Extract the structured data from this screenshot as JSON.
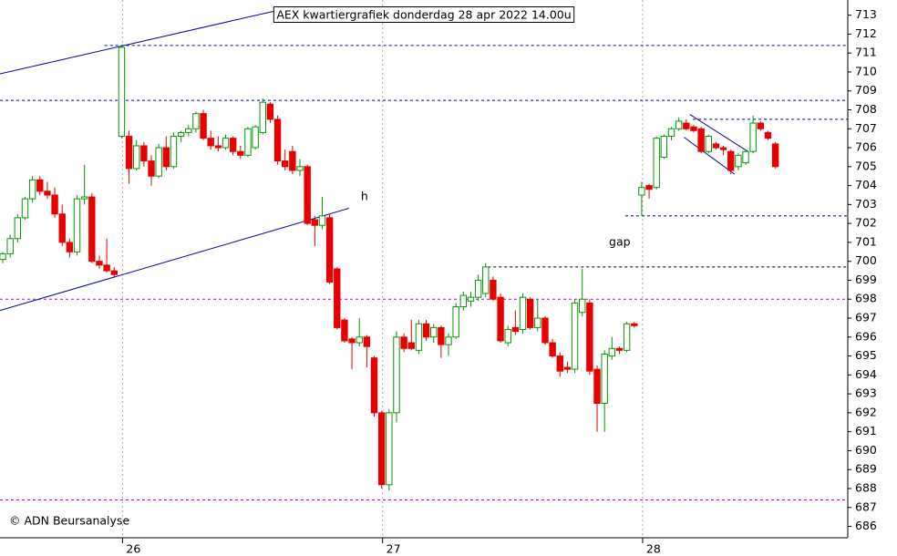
{
  "chart_data": {
    "type": "candlestick",
    "title": "AEX kwartiergrafiek donderdag 28 apr 2022  14.00u",
    "credit": "© ADN Beursanalyse",
    "categories": [
      null,
      null,
      null,
      null,
      null,
      null,
      null,
      null,
      null,
      null,
      null,
      null,
      null,
      null,
      null,
      null,
      "26",
      null,
      null,
      null,
      null,
      null,
      null,
      null,
      null,
      null,
      null,
      null,
      null,
      null,
      null,
      null,
      null,
      null,
      null,
      null,
      null,
      null,
      null,
      null,
      null,
      null,
      null,
      null,
      null,
      null,
      null,
      null,
      null,
      null,
      null,
      "27",
      null,
      null,
      null,
      null,
      null,
      null,
      null,
      null,
      null,
      null,
      null,
      null,
      null,
      null,
      null,
      null,
      null,
      null,
      null,
      null,
      null,
      null,
      null,
      null,
      null,
      null,
      null,
      null,
      null,
      null,
      null,
      null,
      null,
      null,
      "28",
      null,
      null,
      null,
      null,
      null,
      null,
      null,
      null,
      null,
      null,
      null,
      null,
      null,
      null,
      null,
      null,
      null,
      null
    ],
    "open": [
      700.1,
      700.4,
      701.2,
      702.3,
      703.3,
      704.3,
      703.7,
      703.5,
      702.5,
      701.0,
      700.5,
      703.3,
      703.4,
      700.0,
      699.8,
      699.5,
      706.6,
      706.6,
      704.9,
      706.1,
      705.3,
      704.5,
      706.0,
      705.0,
      706.6,
      706.8,
      707.0,
      707.8,
      706.5,
      706.1,
      706.0,
      706.5,
      705.8,
      705.6,
      706.0,
      706.8,
      708.3,
      707.5,
      705.3,
      705.8,
      704.8,
      705.0,
      702.2,
      701.9,
      702.3,
      699.6,
      696.9,
      695.9,
      695.7,
      696.0,
      694.9,
      692.0,
      688.2,
      692.0,
      696.0,
      695.7,
      695.3,
      696.7,
      696.0,
      696.5,
      695.6,
      696.0,
      697.6,
      697.9,
      698.1,
      698.3,
      699.0,
      698.1,
      695.7,
      696.5,
      696.4,
      698.0,
      696.5,
      697.0,
      695.7,
      695.0,
      694.4,
      694.3,
      697.3,
      697.8,
      694.3,
      692.5,
      695.0,
      695.4,
      695.3,
      696.7,
      703.5,
      704.0,
      703.9,
      705.5,
      706.6,
      707.0,
      707.3,
      707.1,
      707.0,
      705.8,
      706.2,
      706.0,
      705.8,
      705.0,
      705.2,
      705.8,
      707.3,
      706.8,
      706.2
    ],
    "high": [
      700.5,
      701.4,
      702.5,
      703.4,
      704.5,
      704.5,
      704.2,
      703.9,
      703.0,
      701.2,
      703.5,
      705.1,
      703.6,
      700.3,
      701.2,
      699.7,
      711.4,
      706.9,
      706.4,
      706.3,
      705.6,
      706.2,
      706.6,
      706.8,
      706.9,
      707.2,
      707.9,
      708.0,
      706.9,
      706.6,
      706.7,
      706.6,
      706.1,
      707.1,
      707.2,
      708.6,
      708.4,
      707.7,
      705.9,
      706.1,
      705.4,
      705.1,
      702.4,
      703.4,
      702.5,
      699.7,
      697.0,
      696.0,
      697.0,
      696.1,
      695.0,
      692.1,
      692.2,
      696.3,
      696.2,
      696.9,
      696.9,
      696.9,
      696.7,
      696.6,
      696.2,
      697.8,
      698.4,
      698.4,
      699.3,
      699.9,
      699.2,
      698.3,
      696.6,
      697.4,
      698.3,
      698.1,
      698.0,
      697.1,
      695.9,
      695.2,
      694.7,
      698.0,
      699.6,
      698.0,
      694.5,
      695.3,
      696.0,
      695.5,
      696.8,
      696.8,
      704.2,
      704.1,
      706.6,
      706.7,
      707.1,
      707.6,
      707.5,
      707.2,
      707.1,
      706.7,
      706.3,
      706.1,
      705.9,
      705.7,
      705.9,
      707.7,
      707.4,
      706.9,
      706.3
    ],
    "low": [
      699.9,
      700.2,
      701.0,
      702.2,
      703.1,
      703.5,
      703.3,
      702.3,
      700.8,
      700.2,
      700.3,
      703.0,
      699.9,
      699.6,
      699.4,
      699.2,
      706.5,
      704.1,
      704.8,
      705.0,
      704.0,
      704.4,
      704.8,
      704.9,
      706.3,
      706.6,
      706.8,
      706.4,
      705.9,
      705.8,
      705.9,
      705.6,
      705.4,
      705.5,
      705.9,
      706.7,
      707.3,
      705.1,
      704.8,
      704.6,
      704.5,
      701.9,
      700.8,
      701.7,
      698.8,
      696.4,
      695.7,
      694.3,
      695.5,
      694.4,
      691.8,
      688.0,
      687.9,
      691.5,
      695.2,
      695.3,
      695.1,
      695.8,
      695.7,
      694.9,
      695.0,
      695.9,
      697.4,
      697.6,
      697.9,
      698.1,
      697.9,
      695.7,
      695.5,
      696.1,
      696.2,
      696.4,
      696.3,
      695.6,
      694.9,
      693.9,
      694.1,
      694.1,
      697.1,
      694.0,
      691.0,
      691.0,
      694.8,
      695.1,
      695.2,
      696.5,
      702.4,
      703.3,
      703.8,
      705.4,
      706.4,
      706.9,
      706.9,
      706.8,
      705.7,
      705.7,
      705.9,
      705.6,
      704.6,
      704.8,
      705.1,
      705.7,
      706.9,
      706.4,
      704.9
    ],
    "close": [
      700.4,
      701.2,
      702.3,
      703.3,
      704.3,
      703.7,
      703.5,
      702.5,
      701.0,
      700.5,
      703.3,
      703.4,
      700.0,
      699.8,
      699.5,
      699.3,
      711.3,
      704.9,
      706.1,
      705.3,
      704.5,
      706.0,
      705.0,
      706.6,
      706.8,
      707.0,
      707.8,
      706.5,
      706.1,
      706.0,
      706.5,
      705.8,
      705.6,
      707.0,
      707.1,
      708.4,
      707.5,
      705.3,
      705.0,
      704.8,
      705.0,
      702.0,
      701.9,
      702.4,
      698.9,
      696.5,
      695.8,
      695.7,
      696.0,
      695.5,
      692.0,
      688.2,
      692.0,
      696.0,
      695.4,
      695.4,
      696.7,
      696.0,
      696.5,
      695.6,
      696.0,
      697.6,
      698.2,
      698.1,
      699.0,
      699.7,
      698.0,
      695.8,
      696.4,
      696.3,
      698.1,
      696.5,
      697.0,
      695.7,
      695.0,
      694.2,
      694.3,
      697.8,
      698.0,
      694.2,
      692.5,
      695.1,
      695.4,
      695.3,
      696.7,
      696.6,
      703.9,
      703.8,
      706.5,
      706.6,
      707.0,
      707.4,
      707.0,
      706.9,
      705.8,
      706.6,
      706.0,
      705.9,
      704.8,
      705.6,
      705.8,
      707.3,
      707.0,
      706.5,
      705.0
    ],
    "up_color": "#009900",
    "down_color": "#e80000",
    "xlim": [
      -0.37,
      113.74
    ],
    "ylim": [
      685.4,
      713.8
    ],
    "yticks": [
      686,
      687,
      688,
      689,
      690,
      691,
      692,
      693,
      694,
      695,
      696,
      697,
      698,
      699,
      700,
      701,
      702,
      703,
      704,
      705,
      706,
      707,
      708,
      709,
      710,
      711,
      712,
      713
    ],
    "levels": [
      {
        "value": 711.4,
        "x_start": 13.7,
        "color": "#0000b0"
      },
      {
        "value": 708.5,
        "x_start": -0.37,
        "color": "#0000b0"
      },
      {
        "value": 707.5,
        "x_start": 92.9,
        "color": "#000080"
      },
      {
        "value": 702.4,
        "x_start": 83.8,
        "color": "#000080"
      },
      {
        "value": 699.7,
        "x_start": 65.3,
        "color": "#000000"
      },
      {
        "value": 698.0,
        "x_start": -0.37,
        "color": "#c000c0"
      },
      {
        "value": 687.4,
        "x_start": -0.37,
        "color": "#c000c0"
      }
    ],
    "trendlines": [
      {
        "points": [
          [
            -0.37,
            709.9
          ],
          [
            36.4,
            713.2
          ]
        ],
        "color": "#0000b0"
      },
      {
        "points": [
          [
            -0.37,
            697.4
          ],
          [
            46.6,
            702.8
          ]
        ],
        "color": "#0000b0"
      },
      {
        "points": [
          [
            92.5,
            707.75
          ],
          [
            100.3,
            705.8
          ]
        ],
        "color": "#0000b0"
      },
      {
        "points": [
          [
            91.7,
            706.55
          ],
          [
            98.5,
            704.6
          ]
        ],
        "color": "#0000b0"
      }
    ],
    "annotations": [
      {
        "text": "h",
        "x": 48.2,
        "y": 703.4,
        "color": "#0000c0"
      },
      {
        "text": "gap",
        "x": 81.6,
        "y": 701.0,
        "color": "#000000"
      }
    ]
  }
}
